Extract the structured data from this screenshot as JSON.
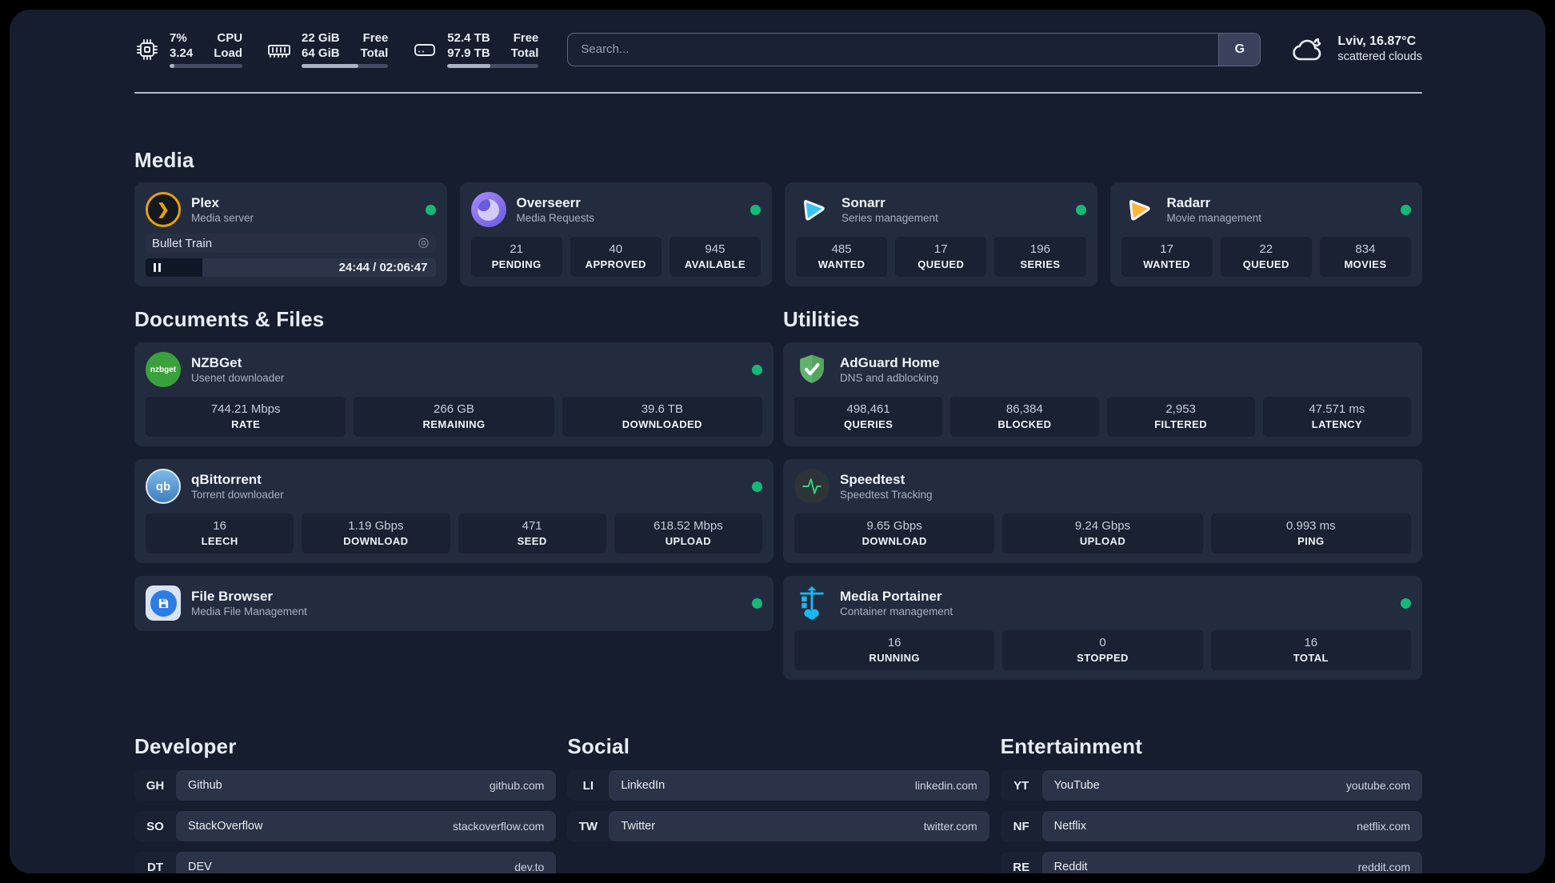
{
  "topbar": {
    "metrics": [
      {
        "icon": "cpu-icon",
        "values": [
          "7%",
          "3.24"
        ],
        "labels": [
          "CPU",
          "Load"
        ],
        "progress": 7
      },
      {
        "icon": "memory-icon",
        "values": [
          "22 GiB",
          "64 GiB"
        ],
        "labels": [
          "Free",
          "Total"
        ],
        "progress": 66
      },
      {
        "icon": "disk-icon",
        "values": [
          "52.4 TB",
          "97.9 TB"
        ],
        "labels": [
          "Free",
          "Total"
        ],
        "progress": 47
      }
    ],
    "search": {
      "placeholder": "Search...",
      "engine_button": "G"
    },
    "weather": {
      "headline": "Lviv, 16.87°C",
      "condition": "scattered clouds"
    }
  },
  "media": {
    "title": "Media",
    "plex": {
      "name": "Plex",
      "subtitle": "Media server",
      "online": true,
      "now_playing": {
        "title": "Bullet Train",
        "time": "24:44 / 02:06:47",
        "progress": 19.5
      }
    },
    "overseerr": {
      "name": "Overseerr",
      "subtitle": "Media Requests",
      "online": true,
      "stats": [
        {
          "value": "21",
          "label": "PENDING"
        },
        {
          "value": "40",
          "label": "APPROVED"
        },
        {
          "value": "945",
          "label": "AVAILABLE"
        }
      ]
    },
    "sonarr": {
      "name": "Sonarr",
      "subtitle": "Series management",
      "online": true,
      "stats": [
        {
          "value": "485",
          "label": "WANTED"
        },
        {
          "value": "17",
          "label": "QUEUED"
        },
        {
          "value": "196",
          "label": "SERIES"
        }
      ]
    },
    "radarr": {
      "name": "Radarr",
      "subtitle": "Movie management",
      "online": true,
      "stats": [
        {
          "value": "17",
          "label": "WANTED"
        },
        {
          "value": "22",
          "label": "QUEUED"
        },
        {
          "value": "834",
          "label": "MOVIES"
        }
      ]
    }
  },
  "documents": {
    "title": "Documents & Files",
    "nzbget": {
      "name": "NZBGet",
      "subtitle": "Usenet downloader",
      "online": true,
      "icon_text": "nzbget",
      "stats": [
        {
          "value": "744.21 Mbps",
          "label": "RATE"
        },
        {
          "value": "266 GB",
          "label": "REMAINING"
        },
        {
          "value": "39.6 TB",
          "label": "DOWNLOADED"
        }
      ]
    },
    "qbittorrent": {
      "name": "qBittorrent",
      "subtitle": "Torrent downloader",
      "online": true,
      "icon_text": "qb",
      "stats": [
        {
          "value": "16",
          "label": "LEECH"
        },
        {
          "value": "1.19 Gbps",
          "label": "DOWNLOAD"
        },
        {
          "value": "471",
          "label": "SEED"
        },
        {
          "value": "618.52 Mbps",
          "label": "UPLOAD"
        }
      ]
    },
    "filebrowser": {
      "name": "File Browser",
      "subtitle": "Media File Management",
      "online": true
    }
  },
  "utilities": {
    "title": "Utilities",
    "adguard": {
      "name": "AdGuard Home",
      "subtitle": "DNS and adblocking",
      "online": false,
      "stats": [
        {
          "value": "498,461",
          "label": "QUERIES"
        },
        {
          "value": "86,384",
          "label": "BLOCKED"
        },
        {
          "value": "2,953",
          "label": "FILTERED"
        },
        {
          "value": "47.571 ms",
          "label": "LATENCY"
        }
      ]
    },
    "speedtest": {
      "name": "Speedtest",
      "subtitle": "Speedtest Tracking",
      "online": false,
      "stats": [
        {
          "value": "9.65 Gbps",
          "label": "DOWNLOAD"
        },
        {
          "value": "9.24 Gbps",
          "label": "UPLOAD"
        },
        {
          "value": "0.993 ms",
          "label": "PING"
        }
      ]
    },
    "portainer": {
      "name": "Media Portainer",
      "subtitle": "Container management",
      "online": true,
      "stats": [
        {
          "value": "16",
          "label": "RUNNING"
        },
        {
          "value": "0",
          "label": "STOPPED"
        },
        {
          "value": "16",
          "label": "TOTAL"
        }
      ]
    }
  },
  "bookmarks": [
    {
      "title": "Developer",
      "links": [
        {
          "abbr": "GH",
          "name": "Github",
          "url": "github.com"
        },
        {
          "abbr": "SO",
          "name": "StackOverflow",
          "url": "stackoverflow.com"
        },
        {
          "abbr": "DT",
          "name": "DEV",
          "url": "dev.to"
        }
      ]
    },
    {
      "title": "Social",
      "links": [
        {
          "abbr": "LI",
          "name": "LinkedIn",
          "url": "linkedin.com"
        },
        {
          "abbr": "TW",
          "name": "Twitter",
          "url": "twitter.com"
        }
      ]
    },
    {
      "title": "Entertainment",
      "links": [
        {
          "abbr": "YT",
          "name": "YouTube",
          "url": "youtube.com"
        },
        {
          "abbr": "NF",
          "name": "Netflix",
          "url": "netflix.com"
        },
        {
          "abbr": "RE",
          "name": "Reddit",
          "url": "reddit.com"
        }
      ]
    }
  ],
  "colors": {
    "status_online": "#17b877",
    "plex_accent": "#e5a00d",
    "sonarr_accent": "#35c5f4",
    "radarr_accent": "#ffb53c"
  }
}
